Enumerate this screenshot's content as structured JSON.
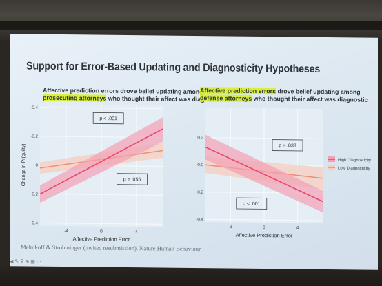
{
  "slide": {
    "title": "Support for Error-Based Updating and Diagnosticity Hypotheses",
    "left_subtitle_line1": "Affective prediction errors drove belief updating among",
    "left_subtitle_highlight": "prosecuting attorneys",
    "left_subtitle_line2_rest": " who thought their affect was diagnostic",
    "right_subtitle_line1_pre": "",
    "right_subtitle_highlight1": "Affective prediction errors",
    "right_subtitle_line1_rest": " drove belief updating among",
    "right_subtitle_highlight2": "defense attorneys",
    "right_subtitle_line2_rest": " who thought their affect was diagnostic",
    "citation": "Melnikoff & Strohminger (invited resubmission). Nature Human Behaviour",
    "toolbar_icons": [
      "arrow-icon",
      "pen-icon",
      "search-icon",
      "zoom-icon",
      "grid-icon",
      "more-icon"
    ]
  },
  "colors": {
    "high": "#e8476f",
    "high_band": "#f2a0b4",
    "low": "#ee8f73",
    "low_band": "#f6cdbf",
    "panel_bg": "#e6eef5",
    "grid": "#f6f9fb",
    "highlight": "#d8ef3c"
  },
  "chart_data": [
    {
      "type": "line",
      "xlabel": "Affective Prediction Error",
      "ylabel": "Change in Pr(guilty)",
      "xlim": [
        -7,
        7
      ],
      "ylim": [
        -0.42,
        0.42
      ],
      "xticks": [
        "-4",
        "0",
        "4"
      ],
      "yticks": [
        "-0.4",
        "-0.2",
        "0",
        "0.2",
        "0.4"
      ],
      "series": [
        {
          "key": "high",
          "x": [
            -7,
            7
          ],
          "y": [
            -0.2,
            0.26
          ],
          "lower": [
            -0.26,
            0.17
          ],
          "upper": [
            -0.14,
            0.34
          ]
        },
        {
          "key": "low",
          "x": [
            -7,
            7
          ],
          "y": [
            -0.02,
            0.11
          ],
          "lower": [
            -0.06,
            0.06
          ],
          "upper": [
            0.02,
            0.16
          ]
        }
      ],
      "annotations": [
        {
          "text": "p < .001",
          "x": 0.8,
          "y": 0.33
        },
        {
          "text": "p = .055",
          "x": 3.5,
          "y": -0.09
        }
      ],
      "legend": "none",
      "grid": true
    },
    {
      "type": "line",
      "xlabel": "Affective Prediction Error",
      "ylabel": "",
      "xlim": [
        -7,
        7
      ],
      "ylim": [
        -0.42,
        0.42
      ],
      "xticks": [
        "-4",
        "0",
        "4"
      ],
      "yticks": [
        "-0.4",
        "-0.2",
        "0.0",
        "0.2"
      ],
      "series": [
        {
          "name": "High Diagnosticity",
          "key": "high",
          "x": [
            -7,
            7
          ],
          "y": [
            0.13,
            -0.26
          ],
          "lower": [
            0.04,
            -0.34
          ],
          "upper": [
            0.22,
            -0.18
          ]
        },
        {
          "name": "Low Diagnosticity",
          "key": "low",
          "x": [
            -7,
            7
          ],
          "y": [
            0.0,
            -0.09
          ],
          "lower": [
            -0.06,
            -0.17
          ],
          "upper": [
            0.06,
            -0.01
          ]
        }
      ],
      "annotations": [
        {
          "text": "p = .838",
          "x": 2.8,
          "y": 0.15
        },
        {
          "text": "p < .001",
          "x": -1.5,
          "y": -0.28
        }
      ],
      "legend": "right",
      "grid": true
    }
  ]
}
